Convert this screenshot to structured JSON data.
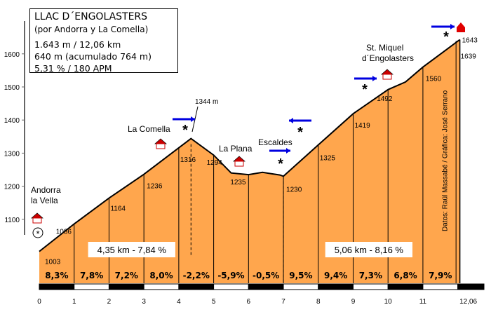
{
  "info": {
    "title": "LLAC D´ENGOLASTERS",
    "subtitle": "(por Andorra y La Comella)",
    "line1": "1.643 m / 12,06 km",
    "line2": "640 m (acumulado 764 m)",
    "line3": "5,31 % / 180 APM"
  },
  "chart_data": {
    "type": "area",
    "xlabel": "",
    "ylabel": "",
    "xlim": [
      0,
      12.06
    ],
    "ylim": [
      1000,
      1650
    ],
    "y_ticks": [
      "1100",
      "1200",
      "1300",
      "1400",
      "1500",
      "1600"
    ],
    "x_ticks": [
      "0",
      "1",
      "2",
      "3",
      "4",
      "5",
      "6",
      "7",
      "8",
      "9",
      "10",
      "11",
      "12,06"
    ],
    "profile": [
      [
        0,
        1003
      ],
      [
        1,
        1086
      ],
      [
        2,
        1164
      ],
      [
        3,
        1236
      ],
      [
        4,
        1316
      ],
      [
        4.35,
        1344
      ],
      [
        5,
        1294
      ],
      [
        5.5,
        1240
      ],
      [
        6,
        1235
      ],
      [
        6.4,
        1242
      ],
      [
        6.9,
        1234
      ],
      [
        7,
        1230
      ],
      [
        8,
        1325
      ],
      [
        9,
        1419
      ],
      [
        10,
        1492
      ],
      [
        10.5,
        1515
      ],
      [
        11,
        1560
      ],
      [
        12.06,
        1643
      ]
    ],
    "km_elevations": [
      "1003",
      "1086",
      "1164",
      "1236",
      "1316",
      "1294",
      "1235",
      "1230",
      "1325",
      "1419",
      "1492",
      "1560"
    ],
    "gradients": [
      "8,3%",
      "7,8%",
      "7,2%",
      "8,0%",
      "-2,2%",
      "-5,9%",
      "-0,5%",
      "9,5%",
      "9,4%",
      "7,3%",
      "6,8%",
      "7,9%"
    ],
    "summit_label": "1643",
    "pass_label": "1639",
    "peak_label": "1344 m",
    "segments": [
      "4,35 km - 7,84 %",
      "5,06 km - 8,16 %"
    ],
    "places": [
      "Andorra",
      "la Vella",
      "La Comella",
      "La Plana",
      "Escaldes",
      "St. Miquel",
      "d´Engolasters"
    ],
    "credits": "Datos: Raül Massabé / Gráfica: José Serrano",
    "colors": {
      "fill": "#ffa64d",
      "arrow": "#0000e0",
      "summit": "#e00000",
      "house": "#cc0000"
    }
  }
}
